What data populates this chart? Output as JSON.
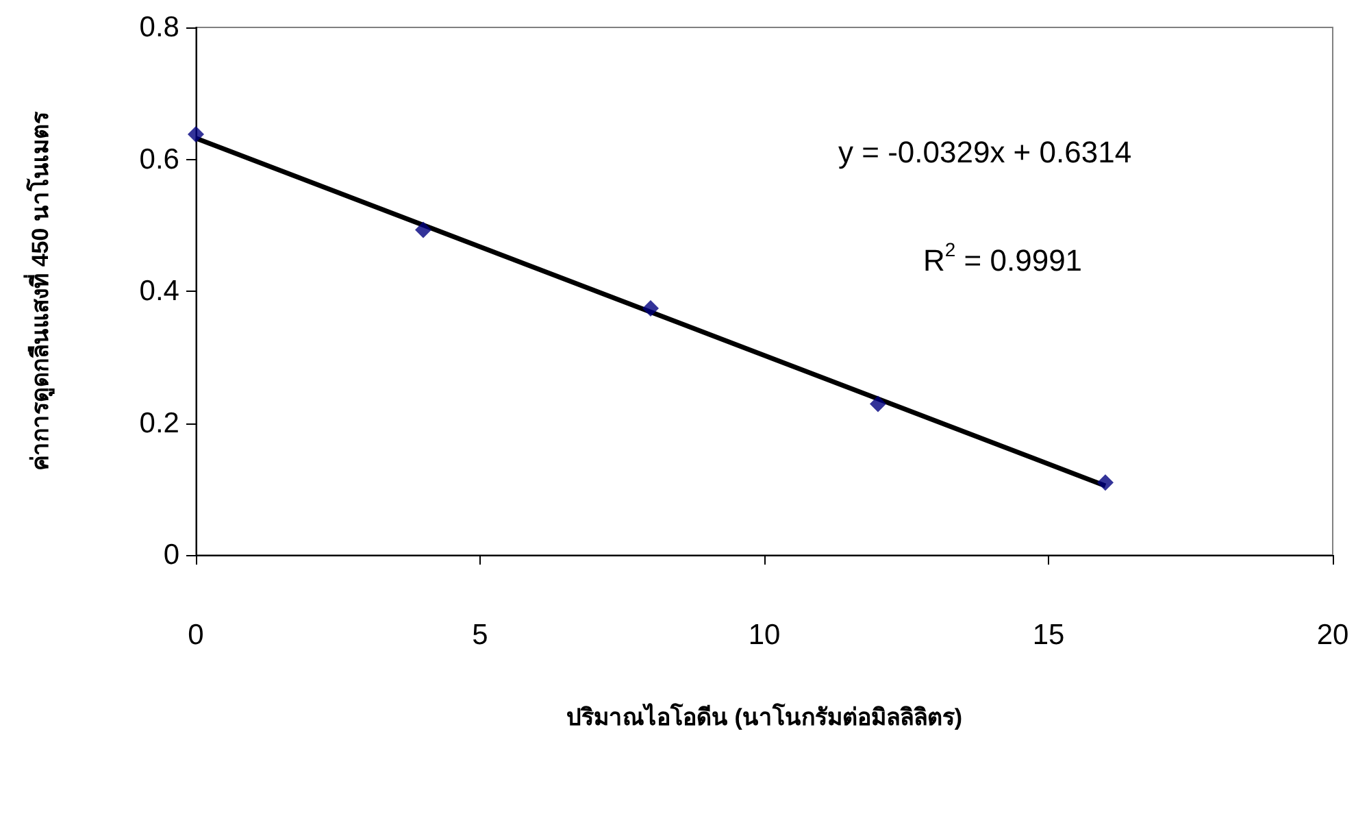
{
  "chart_data": {
    "type": "scatter",
    "xlabel": "ปริมาณไอโอดีน (นาโนกรัมต่อมิลลิลิตร)",
    "ylabel": "ค่าการดูดกลืนแสงที่ 450 นาโนเมตร",
    "series": [
      {
        "color": "#000080",
        "marker": "diamond",
        "x": [
          0,
          4,
          8,
          12,
          16
        ],
        "values": [
          0.638,
          0.493,
          0.374,
          0.229,
          0.11
        ]
      },
      {
        "type": "line",
        "color": "#000000",
        "marker": "none",
        "x": [
          0,
          16
        ],
        "values": [
          0.632,
          0.105
        ]
      }
    ],
    "xlim": [
      0,
      20
    ],
    "xticks": [
      0,
      5,
      10,
      15,
      20
    ],
    "ylim": [
      0,
      0.8
    ],
    "yticks": [
      0,
      0.2,
      0.4,
      0.6,
      0.8
    ],
    "grid": false,
    "annotations": [
      "y = -0.0329x + 0.6314",
      "R$^{2}$ = 0.9991"
    ]
  }
}
